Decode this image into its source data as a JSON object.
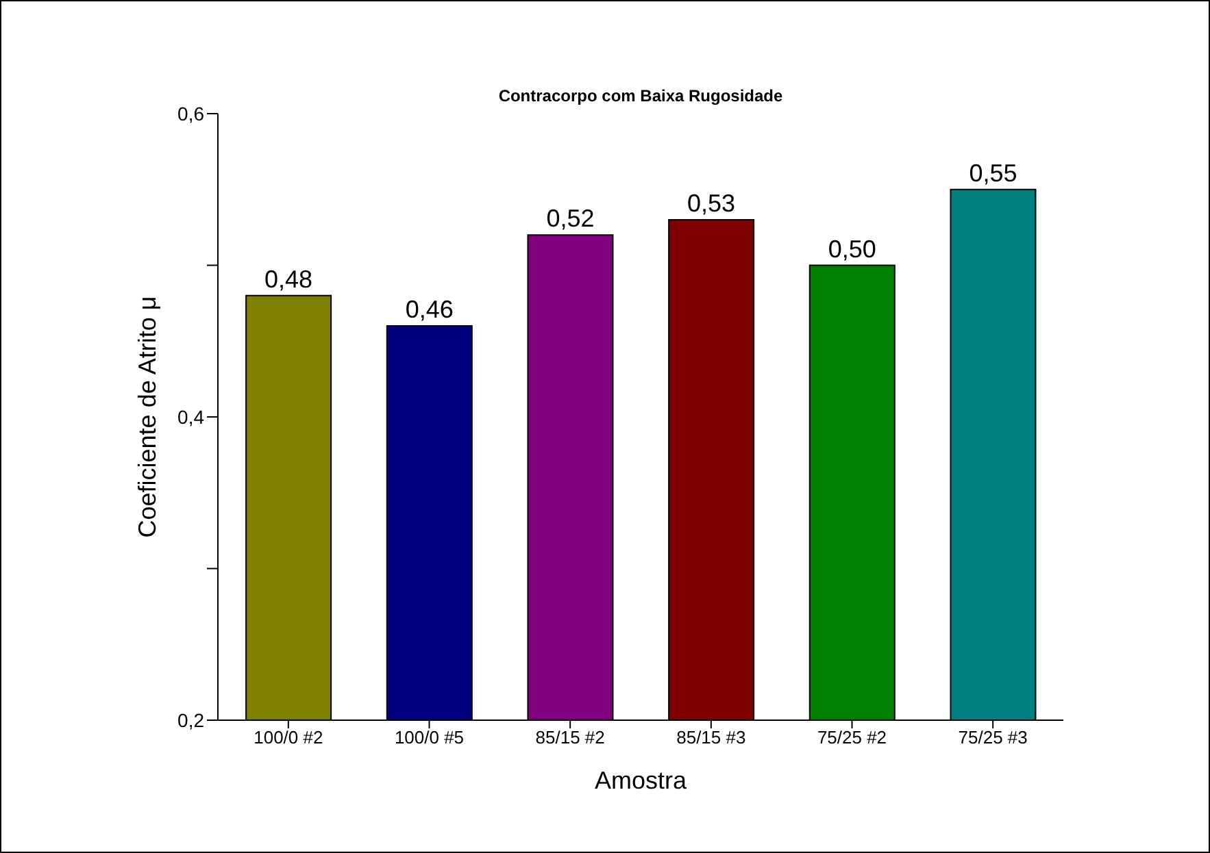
{
  "chart_data": {
    "type": "bar",
    "title": "Contracorpo com Baixa Rugosidade",
    "xlabel": "Amostra",
    "ylabel": "Coeficiente de Atrito μ",
    "categories": [
      "100/0 #2",
      "100/0 #5",
      "85/15 #2",
      "85/15 #3",
      "75/25 #2",
      "75/25 #3"
    ],
    "values": [
      0.48,
      0.46,
      0.52,
      0.53,
      0.5,
      0.55
    ],
    "colors": [
      "#808000",
      "#000080",
      "#800080",
      "#800000",
      "#008000",
      "#008080"
    ],
    "value_labels": [
      "0,48",
      "0,46",
      "0,52",
      "0,53",
      "0,50",
      "0,55"
    ],
    "ylim": [
      0.2,
      0.6
    ],
    "yticks": [
      {
        "value": 0.2,
        "label": "0,2"
      },
      {
        "value": 0.3,
        "label": null
      },
      {
        "value": 0.4,
        "label": "0,4"
      },
      {
        "value": 0.5,
        "label": null
      },
      {
        "value": 0.6,
        "label": "0,6"
      }
    ],
    "grid": false,
    "legend": false
  }
}
